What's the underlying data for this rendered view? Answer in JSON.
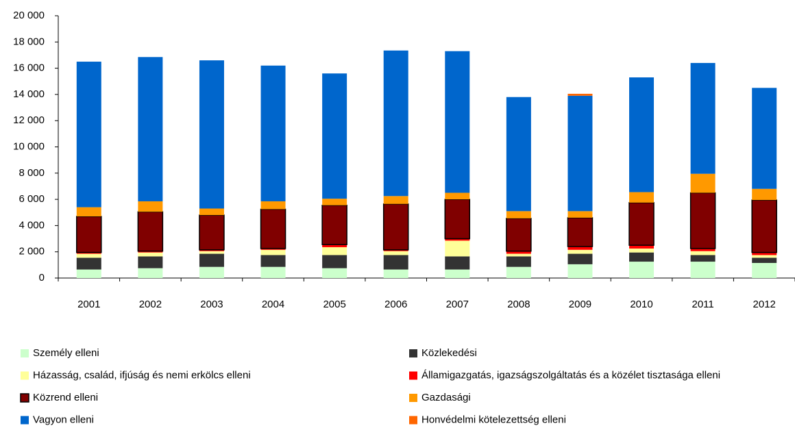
{
  "chart_data": {
    "type": "stacked-bar",
    "categories": [
      "2001",
      "2002",
      "2003",
      "2004",
      "2005",
      "2006",
      "2007",
      "2008",
      "2009",
      "2010",
      "2011",
      "2012"
    ],
    "series": [
      {
        "name": "Személy elleni",
        "color": "#ccffcc",
        "values": [
          650,
          750,
          850,
          850,
          750,
          650,
          650,
          850,
          1050,
          1250,
          1250,
          1150
        ]
      },
      {
        "name": "Közlekedési",
        "color": "#333333",
        "values": [
          900,
          900,
          1000,
          900,
          1000,
          1100,
          1000,
          800,
          800,
          700,
          500,
          400
        ]
      },
      {
        "name": "Házasság, család, ifjúság és nemi erkölcs elleni",
        "color": "#ffff99",
        "values": [
          300,
          300,
          200,
          400,
          600,
          300,
          1200,
          200,
          300,
          300,
          300,
          200
        ]
      },
      {
        "name": "Államigazgatás, igazságszolgáltatás és a közélet tisztasága elleni",
        "color": "#ff0000",
        "values": [
          100,
          100,
          100,
          100,
          200,
          100,
          150,
          200,
          250,
          250,
          200,
          200
        ]
      },
      {
        "name": "Közrend elleni",
        "color": "#800000",
        "values": [
          2750,
          3000,
          2650,
          3000,
          3000,
          3500,
          3000,
          2500,
          2200,
          3250,
          4250,
          4000
        ]
      },
      {
        "name": "Gazdasági",
        "color": "#ff9900",
        "values": [
          700,
          800,
          500,
          600,
          500,
          600,
          500,
          550,
          500,
          800,
          1450,
          850
        ]
      },
      {
        "name": "Vagyon elleni",
        "color": "#0066cc",
        "values": [
          11100,
          11000,
          11300,
          10350,
          9550,
          11100,
          10800,
          8700,
          8800,
          8750,
          8450,
          7700
        ]
      },
      {
        "name": "Honvédelmi kötelezettség elleni",
        "color": "#ff6600",
        "values": [
          0,
          0,
          0,
          0,
          0,
          0,
          0,
          0,
          150,
          0,
          0,
          0
        ]
      }
    ],
    "ylim": [
      0,
      20000
    ],
    "yticks": [
      0,
      {
        "value": 2000,
        "label": "2 000"
      },
      {
        "value": 4000,
        "label": "4 000"
      },
      {
        "value": 6000,
        "label": "6 000"
      },
      {
        "value": 8000,
        "label": "8 000"
      },
      {
        "value": 10000,
        "label": "10 000"
      },
      {
        "value": 12000,
        "label": "12 000"
      },
      {
        "value": 14000,
        "label": "14 000"
      },
      {
        "value": 16000,
        "label": "16 000"
      },
      {
        "value": 18000,
        "label": "18 000"
      },
      {
        "value": 20000,
        "label": "20 000"
      }
    ],
    "grid": false
  }
}
